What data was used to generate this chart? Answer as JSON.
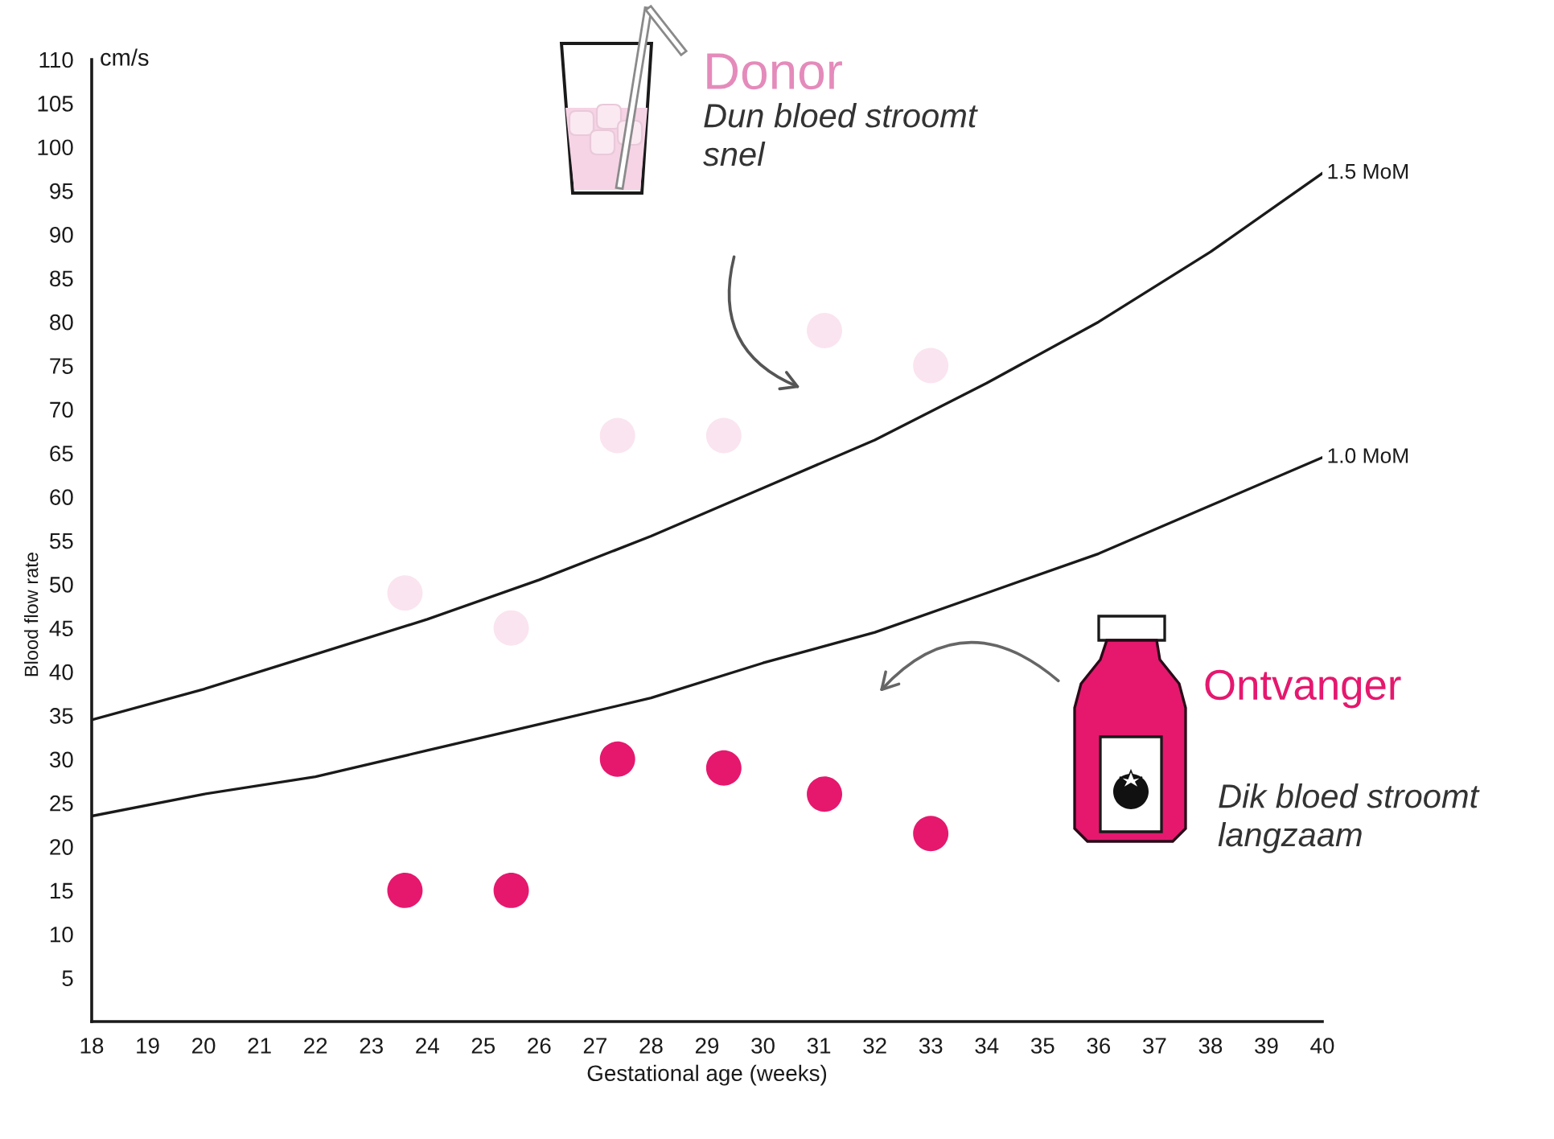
{
  "chart_data": {
    "type": "scatter",
    "xlabel": "Gestational age (weeks)",
    "ylabel": "Blood flow rate",
    "annotations": [
      "cm/s",
      "Donor",
      "Dun bloed stroomt\nsnel",
      "Ontvanger",
      "Dik bloed stroomt\nlangzaam"
    ],
    "xlim": [
      18,
      40
    ],
    "xticks": [
      18,
      19,
      20,
      21,
      22,
      23,
      24,
      25,
      26,
      27,
      28,
      29,
      30,
      31,
      32,
      33,
      34,
      35,
      36,
      37,
      38,
      39,
      40
    ],
    "ylim": [
      0,
      110
    ],
    "yticks": [
      5,
      10,
      15,
      20,
      25,
      30,
      35,
      40,
      45,
      50,
      55,
      60,
      65,
      70,
      75,
      80,
      85,
      90,
      95,
      100,
      105,
      110
    ],
    "series": [
      {
        "name": "1.5 MoM",
        "type": "line",
        "color": "#1a1a1a",
        "x": [
          18,
          20,
          22,
          24,
          26,
          28,
          30,
          32,
          34,
          36,
          38,
          40
        ],
        "values": [
          34.5,
          38,
          42,
          46,
          50.5,
          55.5,
          61,
          66.5,
          73,
          80,
          88,
          97
        ]
      },
      {
        "name": "1.0 MoM",
        "type": "line",
        "color": "#1a1a1a",
        "x": [
          18,
          20,
          22,
          24,
          26,
          28,
          30,
          32,
          34,
          36,
          38,
          40
        ],
        "values": [
          23.5,
          26,
          28,
          31,
          34,
          37,
          41,
          44.5,
          49,
          53.5,
          59,
          64.5
        ]
      },
      {
        "marker": "circle",
        "color": "#fae4ef",
        "x": [
          23.6,
          25.5,
          27.4,
          29.3,
          31.1,
          33.0
        ],
        "values": [
          49,
          45,
          67,
          67,
          79,
          75
        ]
      },
      {
        "marker": "circle",
        "color": "#e5186e",
        "x": [
          23.6,
          25.5,
          27.4,
          29.3,
          31.1,
          33.0
        ],
        "values": [
          15,
          15,
          30,
          29,
          26,
          21.5
        ]
      }
    ]
  }
}
